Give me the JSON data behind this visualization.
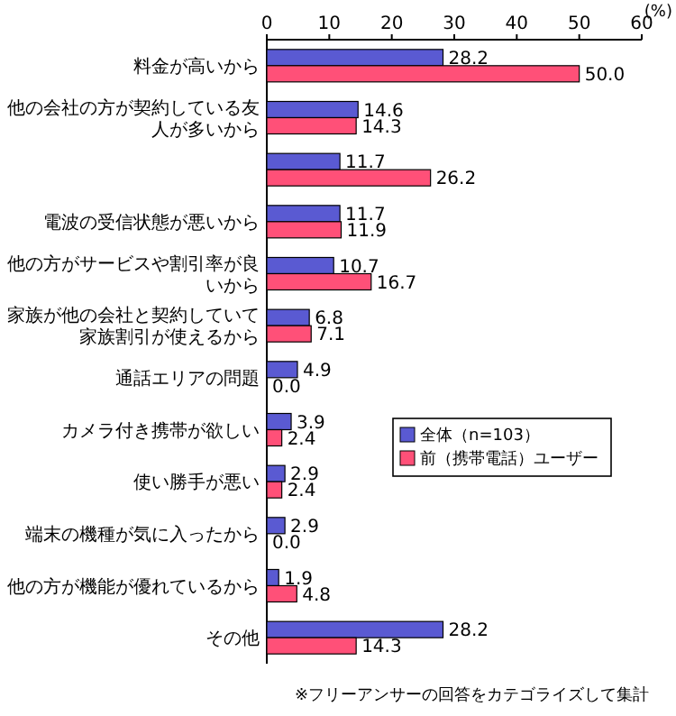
{
  "chart_data": {
    "type": "bar",
    "orientation": "horizontal",
    "xlabel": "(%)",
    "categories": [
      "料金が高いから",
      "他の会社の方が契約している友人が多いから",
      null,
      "電波の受信状態が悪いから",
      "他の方がサービスや割引率が良いから",
      "家族が他の会社と契約していて家族割引が使えるから",
      "通話エリアの問題",
      "カメラ付き携帯が欲しい",
      "使い勝手が悪い",
      "端末の機種が気に入ったから",
      "他の方が機能が優れているから",
      "その他"
    ],
    "series": [
      {
        "name": "全体（n=103）",
        "color": "#5a5ad2",
        "values": [
          28.2,
          14.6,
          11.7,
          11.7,
          10.7,
          6.8,
          4.9,
          3.9,
          2.9,
          2.9,
          1.9,
          28.2
        ],
        "value_labels": [
          "28.2",
          "14.6",
          "11.7",
          "11.7",
          "10.7",
          "6.8",
          "4.9",
          "3.9",
          "2.9",
          "2.9",
          "1.9",
          "28.2"
        ]
      },
      {
        "name": "前（携帯電話）ユーザー",
        "color": "#ff5078",
        "values": [
          50.0,
          14.3,
          26.2,
          11.9,
          16.7,
          7.1,
          0.0,
          2.4,
          2.4,
          0.0,
          4.8,
          14.3
        ],
        "value_labels": [
          "50.0",
          "14.3",
          "26.2",
          "11.9",
          "16.7",
          "7.1",
          "0.0",
          "2.4",
          "2.4",
          "0.0",
          "4.8",
          "14.3"
        ]
      }
    ],
    "xlim": [
      0,
      60
    ],
    "xticks": [
      0,
      10,
      20,
      30,
      40,
      50,
      60
    ],
    "legend": "right",
    "grid": false,
    "annotations": [
      "※フリーアンサーの回答をカテゴライズして集計"
    ]
  }
}
